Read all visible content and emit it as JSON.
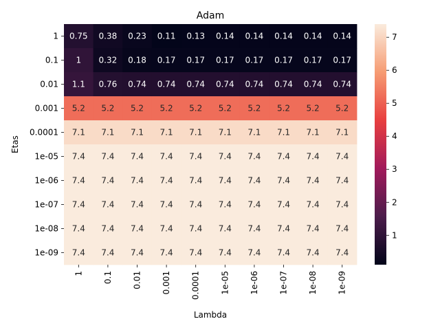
{
  "chart_data": {
    "type": "heatmap",
    "title": "Adam",
    "xlabel": "Lambda",
    "ylabel": "Etas",
    "x_categories": [
      "1",
      "0.1",
      "0.01",
      "0.001",
      "0.0001",
      "1e-05",
      "1e-06",
      "1e-07",
      "1e-08",
      "1e-09"
    ],
    "y_categories": [
      "1",
      "0.1",
      "0.01",
      "0.001",
      "0.0001",
      "1e-05",
      "1e-06",
      "1e-07",
      "1e-08",
      "1e-09"
    ],
    "values": [
      [
        0.75,
        0.38,
        0.23,
        0.11,
        0.13,
        0.14,
        0.14,
        0.14,
        0.14,
        0.14
      ],
      [
        1,
        0.32,
        0.18,
        0.17,
        0.17,
        0.17,
        0.17,
        0.17,
        0.17,
        0.17
      ],
      [
        1.1,
        0.76,
        0.74,
        0.74,
        0.74,
        0.74,
        0.74,
        0.74,
        0.74,
        0.74
      ],
      [
        5.2,
        5.2,
        5.2,
        5.2,
        5.2,
        5.2,
        5.2,
        5.2,
        5.2,
        5.2
      ],
      [
        7.1,
        7.1,
        7.1,
        7.1,
        7.1,
        7.1,
        7.1,
        7.1,
        7.1,
        7.1
      ],
      [
        7.4,
        7.4,
        7.4,
        7.4,
        7.4,
        7.4,
        7.4,
        7.4,
        7.4,
        7.4
      ],
      [
        7.4,
        7.4,
        7.4,
        7.4,
        7.4,
        7.4,
        7.4,
        7.4,
        7.4,
        7.4
      ],
      [
        7.4,
        7.4,
        7.4,
        7.4,
        7.4,
        7.4,
        7.4,
        7.4,
        7.4,
        7.4
      ],
      [
        7.4,
        7.4,
        7.4,
        7.4,
        7.4,
        7.4,
        7.4,
        7.4,
        7.4,
        7.4
      ],
      [
        7.4,
        7.4,
        7.4,
        7.4,
        7.4,
        7.4,
        7.4,
        7.4,
        7.4,
        7.4
      ]
    ],
    "colorbar": {
      "vmin": 0.11,
      "vmax": 7.4,
      "ticks": [
        1,
        2,
        3,
        4,
        5,
        6,
        7
      ]
    },
    "colormap": "rocket",
    "colormap_stops": [
      "#03051a",
      "#4c1d4b",
      "#a11a5b",
      "#e83f3f",
      "#f69c73",
      "#faebdd"
    ]
  }
}
